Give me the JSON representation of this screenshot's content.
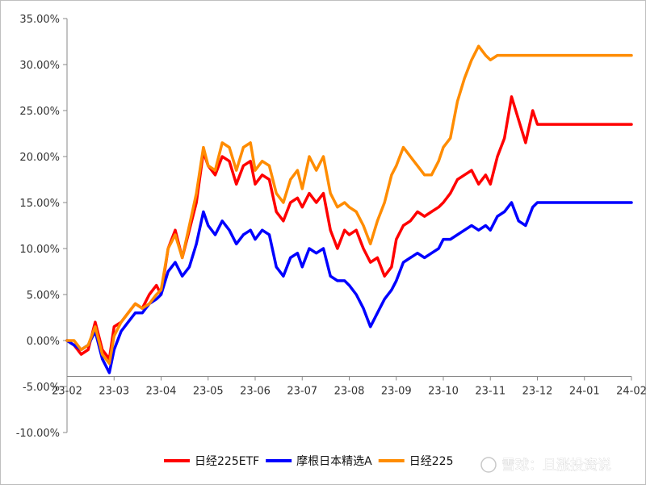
{
  "chart_data": {
    "type": "line",
    "title": "",
    "xlabel": "",
    "ylabel": "",
    "ylim": [
      -10,
      35
    ],
    "ytick_step": 5,
    "yticks": [
      "35.00%",
      "30.00%",
      "25.00%",
      "20.00%",
      "15.00%",
      "10.00%",
      "5.00%",
      "0.00%",
      "-5.00%",
      "-10.00%"
    ],
    "xticks": [
      "23-02",
      "23-03",
      "23-04",
      "23-05",
      "23-06",
      "23-07",
      "23-08",
      "23-09",
      "23-10",
      "23-11",
      "23-12",
      "24-01",
      "24-02"
    ],
    "grid": false,
    "legend_position": "bottom",
    "series": [
      {
        "name": "日经225ETF",
        "color": "#ff0000",
        "x": [
          0,
          0.15,
          0.3,
          0.45,
          0.6,
          0.75,
          0.9,
          1.0,
          1.15,
          1.3,
          1.45,
          1.6,
          1.75,
          1.9,
          2.0,
          2.15,
          2.3,
          2.45,
          2.6,
          2.75,
          2.9,
          3.0,
          3.15,
          3.3,
          3.45,
          3.6,
          3.75,
          3.9,
          4.0,
          4.15,
          4.3,
          4.45,
          4.6,
          4.75,
          4.9,
          5.0,
          5.15,
          5.3,
          5.45,
          5.6,
          5.75,
          5.9,
          6.0,
          6.15,
          6.3,
          6.45,
          6.6,
          6.75,
          6.9,
          7.0,
          7.15,
          7.3,
          7.45,
          7.6,
          7.75,
          7.9,
          8.0,
          8.15,
          8.3,
          8.45,
          8.6,
          8.75,
          8.9,
          9.0,
          9.15,
          9.3,
          9.45,
          9.6,
          9.75,
          9.9,
          10.0,
          10.15,
          10.3,
          10.45,
          10.6,
          10.75,
          10.9,
          11.0,
          11.15,
          11.3,
          11.45,
          11.6,
          11.75,
          11.9,
          12.0
        ],
        "y": [
          0.0,
          -0.5,
          -1.5,
          -1.0,
          2.0,
          -1.0,
          -2.0,
          1.5,
          2.0,
          3.0,
          4.0,
          3.5,
          5.0,
          6.0,
          5.0,
          10.0,
          12.0,
          9.0,
          12.0,
          15.0,
          20.5,
          19.0,
          18.0,
          20.0,
          19.5,
          17.0,
          19.0,
          19.5,
          17.0,
          18.0,
          17.5,
          14.0,
          13.0,
          15.0,
          15.5,
          14.5,
          16.0,
          15.0,
          16.0,
          12.0,
          10.0,
          12.0,
          11.5,
          12.0,
          10.0,
          8.5,
          9.0,
          7.0,
          8.0,
          11.0,
          12.5,
          13.0,
          14.0,
          13.5,
          14.0,
          14.5,
          15.0,
          16.0,
          17.5,
          18.0,
          18.5,
          17.0,
          18.0,
          17.0,
          20.0,
          22.0,
          26.5,
          24.0,
          21.5,
          25.0,
          23.5,
          23.5,
          23.5,
          23.5,
          23.5,
          23.5,
          23.5,
          23.5,
          23.5,
          23.5,
          23.5,
          23.5,
          23.5,
          23.5,
          23.5
        ]
      },
      {
        "name": "摩根日本精选A",
        "color": "#0000ff",
        "x": [
          0,
          0.15,
          0.3,
          0.45,
          0.6,
          0.75,
          0.9,
          1.0,
          1.15,
          1.3,
          1.45,
          1.6,
          1.75,
          1.9,
          2.0,
          2.15,
          2.3,
          2.45,
          2.6,
          2.75,
          2.9,
          3.0,
          3.15,
          3.3,
          3.45,
          3.6,
          3.75,
          3.9,
          4.0,
          4.15,
          4.3,
          4.45,
          4.6,
          4.75,
          4.9,
          5.0,
          5.15,
          5.3,
          5.45,
          5.6,
          5.75,
          5.9,
          6.0,
          6.15,
          6.3,
          6.45,
          6.6,
          6.75,
          6.9,
          7.0,
          7.15,
          7.3,
          7.45,
          7.6,
          7.75,
          7.9,
          8.0,
          8.15,
          8.3,
          8.45,
          8.6,
          8.75,
          8.9,
          9.0,
          9.15,
          9.3,
          9.45,
          9.6,
          9.75,
          9.9,
          10.0,
          10.15,
          10.3,
          10.45,
          10.6,
          10.75,
          10.9,
          11.0,
          11.15,
          11.3,
          11.45,
          11.6,
          11.75,
          11.9,
          12.0
        ],
        "y": [
          0.0,
          -0.5,
          -1.0,
          -0.5,
          1.0,
          -2.0,
          -3.5,
          -1.0,
          1.0,
          2.0,
          3.0,
          3.0,
          4.0,
          4.5,
          5.0,
          7.5,
          8.5,
          7.0,
          8.0,
          10.5,
          14.0,
          12.5,
          11.5,
          13.0,
          12.0,
          10.5,
          11.5,
          12.0,
          11.0,
          12.0,
          11.5,
          8.0,
          7.0,
          9.0,
          9.5,
          8.0,
          10.0,
          9.5,
          10.0,
          7.0,
          6.5,
          6.5,
          6.0,
          5.0,
          3.5,
          1.5,
          3.0,
          4.5,
          5.5,
          6.5,
          8.5,
          9.0,
          9.5,
          9.0,
          9.5,
          10.0,
          11.0,
          11.0,
          11.5,
          12.0,
          12.5,
          12.0,
          12.5,
          12.0,
          13.5,
          14.0,
          15.0,
          13.0,
          12.5,
          14.5,
          15.0,
          15.0,
          15.0,
          15.0,
          15.0,
          15.0,
          15.0,
          15.0,
          15.0,
          15.0,
          15.0,
          15.0,
          15.0,
          15.0,
          15.0
        ]
      },
      {
        "name": "日经225",
        "color": "#ff8c00",
        "x": [
          0,
          0.15,
          0.3,
          0.45,
          0.6,
          0.75,
          0.9,
          1.0,
          1.15,
          1.3,
          1.45,
          1.6,
          1.75,
          1.9,
          2.0,
          2.15,
          2.3,
          2.45,
          2.6,
          2.75,
          2.9,
          3.0,
          3.15,
          3.3,
          3.45,
          3.6,
          3.75,
          3.9,
          4.0,
          4.15,
          4.3,
          4.45,
          4.6,
          4.75,
          4.9,
          5.0,
          5.15,
          5.3,
          5.45,
          5.6,
          5.75,
          5.9,
          6.0,
          6.15,
          6.3,
          6.45,
          6.6,
          6.75,
          6.9,
          7.0,
          7.15,
          7.3,
          7.45,
          7.6,
          7.75,
          7.9,
          8.0,
          8.15,
          8.3,
          8.45,
          8.6,
          8.75,
          8.9,
          9.0,
          9.15,
          9.3,
          9.45,
          9.6,
          9.75,
          9.9,
          10.0,
          10.15,
          10.3,
          10.45,
          10.6,
          10.75,
          10.9,
          11.0,
          11.15,
          11.3,
          11.45,
          11.6,
          11.75,
          11.9,
          12.0
        ],
        "y": [
          0.0,
          0.0,
          -1.0,
          -0.5,
          1.5,
          -1.5,
          -2.5,
          0.5,
          2.0,
          3.0,
          4.0,
          3.5,
          4.0,
          5.0,
          5.5,
          10.0,
          11.5,
          9.0,
          12.5,
          16.0,
          21.0,
          19.0,
          18.5,
          21.5,
          21.0,
          18.5,
          21.0,
          21.5,
          18.5,
          19.5,
          19.0,
          16.0,
          15.0,
          17.5,
          18.5,
          16.5,
          20.0,
          18.5,
          20.0,
          16.0,
          14.5,
          15.0,
          14.5,
          14.0,
          12.5,
          10.5,
          13.0,
          15.0,
          18.0,
          19.0,
          21.0,
          20.0,
          19.0,
          18.0,
          18.0,
          19.5,
          21.0,
          22.0,
          26.0,
          28.5,
          30.5,
          32.0,
          31.0,
          30.5,
          31.0,
          31.0,
          31.0,
          31.0,
          31.0,
          31.0,
          31.0,
          31.0,
          31.0,
          31.0,
          31.0,
          31.0,
          31.0,
          31.0,
          31.0,
          31.0,
          31.0,
          31.0,
          31.0,
          31.0,
          31.0
        ]
      }
    ]
  },
  "watermark": {
    "text": "雪球：且涨投资说"
  }
}
